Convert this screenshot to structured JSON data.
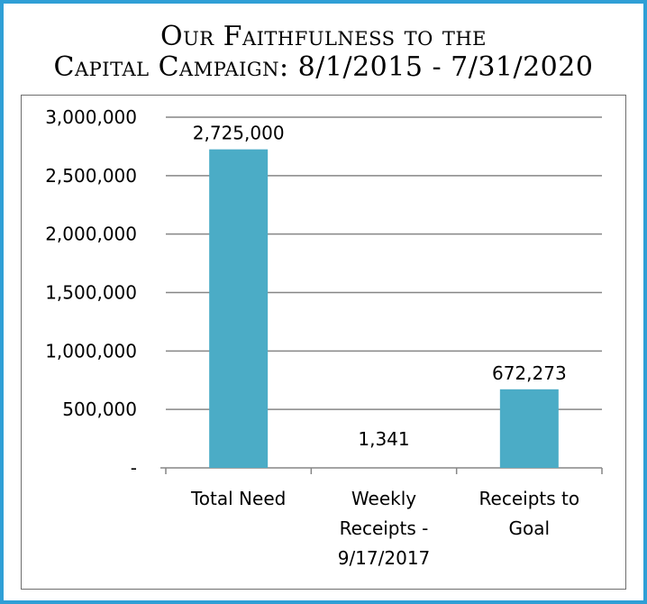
{
  "title_lines": [
    "Our Faithfulness to the",
    "Capital Campaign: 8/1/2015 - 7/31/2020"
  ],
  "colors": {
    "bar": "#4bacc6",
    "border": "#2f9fd6",
    "grid": "#868686"
  },
  "chart_data": {
    "type": "bar",
    "title": "Our Faithfulness to the Capital Campaign: 8/1/2015 - 7/31/2020",
    "categories": [
      [
        "Total Need"
      ],
      [
        "Weekly",
        "Receipts -",
        "9/17/2017"
      ],
      [
        "Receipts to",
        "Goal"
      ]
    ],
    "values": [
      2725000,
      1341,
      672273
    ],
    "data_labels": [
      "2,725,000",
      "1,341",
      "672,273"
    ],
    "ylim": [
      0,
      3000000
    ],
    "yticks": [
      0,
      500000,
      1000000,
      1500000,
      2000000,
      2500000,
      3000000
    ],
    "ytick_labels": [
      "-",
      "500,000",
      "1,000,000",
      "1,500,000",
      "2,000,000",
      "2,500,000",
      "3,000,000"
    ],
    "grid": true,
    "xlabel": "",
    "ylabel": ""
  }
}
